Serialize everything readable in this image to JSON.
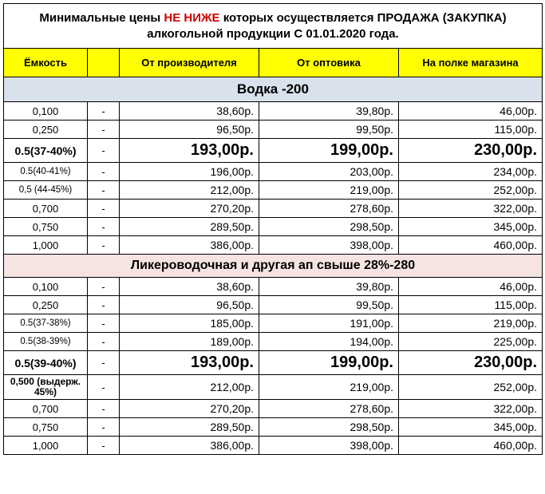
{
  "title": {
    "pre": "Минимальные цены ",
    "red": "НЕ НИЖЕ",
    "post": " которых осуществляется ПРОДАЖА (ЗАКУПКА) алкогольной продукции С 01.01.2020 года."
  },
  "headers": {
    "vol": "Ёмкость",
    "blank": "",
    "prod": "От производителя",
    "whole": "От оптовика",
    "shelf": "На полке магазина"
  },
  "sections": [
    {
      "title": "Водка -200",
      "cls": "section-vodka",
      "rows": [
        {
          "vol": "0,100",
          "p1": "38,60р.",
          "p2": "39,80р.",
          "p3": "46,00р."
        },
        {
          "vol": "0,250",
          "p1": "96,50р.",
          "p2": "99,50р.",
          "p3": "115,00р."
        },
        {
          "vol": "0.5(37-40%)",
          "p1": "193,00р.",
          "p2": "199,00р.",
          "p3": "230,00р.",
          "big": true
        },
        {
          "vol": "0.5(40-41%)",
          "p1": "196,00р.",
          "p2": "203,00р.",
          "p3": "234,00р.",
          "volcls": "small-vol"
        },
        {
          "vol": "0,5 (44-45%)",
          "p1": "212,00р.",
          "p2": "219,00р.",
          "p3": "252,00р.",
          "volcls": "small-vol"
        },
        {
          "vol": "0,700",
          "p1": "270,20р.",
          "p2": "278,60р.",
          "p3": "322,00р."
        },
        {
          "vol": "0,750",
          "p1": "289,50р.",
          "p2": "298,50р.",
          "p3": "345,00р."
        },
        {
          "vol": "1,000",
          "p1": "386,00р.",
          "p2": "398,00р.",
          "p3": "460,00р."
        }
      ]
    },
    {
      "title": "Ликероводочная и другая ап свыше 28%-280",
      "cls": "section-liker",
      "rows": [
        {
          "vol": "0,100",
          "p1": "38,60р.",
          "p2": "39,80р.",
          "p3": "46,00р."
        },
        {
          "vol": "0,250",
          "p1": "96,50р.",
          "p2": "99,50р.",
          "p3": "115,00р."
        },
        {
          "vol": "0.5(37-38%)",
          "p1": "185,00р.",
          "p2": "191,00р.",
          "p3": "219,00р.",
          "volcls": "small-vol"
        },
        {
          "vol": "0.5(38-39%)",
          "p1": "189,00р.",
          "p2": "194,00р.",
          "p3": "225,00р.",
          "volcls": "small-vol"
        },
        {
          "vol": "0.5(39-40%)",
          "p1": "193,00р.",
          "p2": "199,00р.",
          "p3": "230,00р.",
          "big": true
        },
        {
          "vol": "0,500 (выдерж. 45%)",
          "p1": "212,00р.",
          "p2": "219,00р.",
          "p3": "252,00р.",
          "volcls": "two-line"
        },
        {
          "vol": "0,700",
          "p1": "270,20р.",
          "p2": "278,60р.",
          "p3": "322,00р."
        },
        {
          "vol": "0,750",
          "p1": "289,50р.",
          "p2": "298,50р.",
          "p3": "345,00р."
        },
        {
          "vol": "1,000",
          "p1": "386,00р.",
          "p2": "398,00р.",
          "p3": "460,00р."
        }
      ]
    }
  ]
}
